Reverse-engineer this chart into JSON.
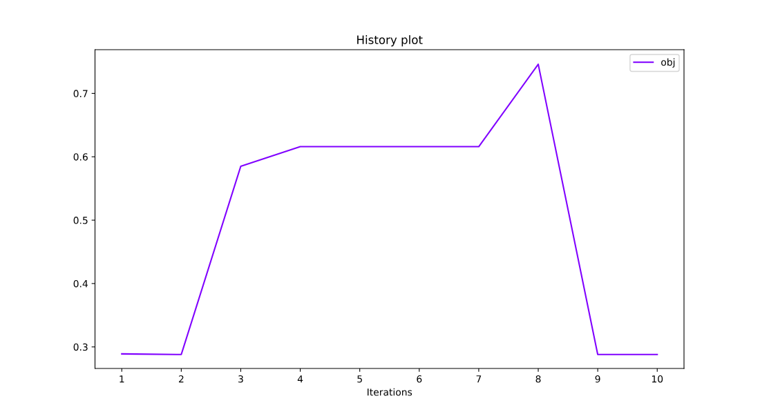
{
  "chart_data": {
    "type": "line",
    "title": "History plot",
    "xlabel": "Iterations",
    "x": [
      1,
      2,
      3,
      4,
      5,
      6,
      7,
      8,
      9,
      10
    ],
    "series": [
      {
        "name": "obj",
        "color": "#8000ff",
        "values": [
          0.289,
          0.288,
          0.585,
          0.616,
          0.616,
          0.616,
          0.616,
          0.746,
          0.288,
          0.288
        ]
      }
    ],
    "xlim": [
      0.55,
      10.45
    ],
    "xticks": [
      1,
      2,
      3,
      4,
      5,
      6,
      7,
      8,
      9,
      10
    ],
    "ylim": [
      0.266,
      0.769
    ],
    "yticks": [
      0.3,
      0.4,
      0.5,
      0.6,
      0.7
    ],
    "grid": false,
    "legend": "top right",
    "marker": "none",
    "line_style": "solid"
  }
}
